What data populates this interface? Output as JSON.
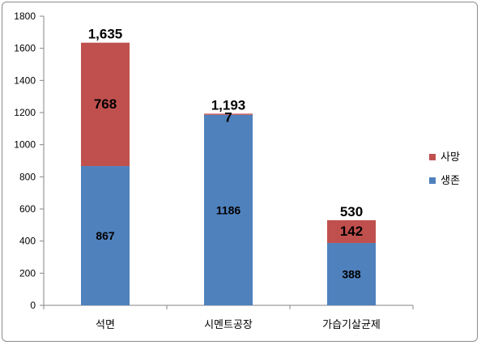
{
  "chart_data": {
    "type": "bar",
    "stacked": true,
    "categories": [
      "석면",
      "시멘트공장",
      "가습기살균제"
    ],
    "series": [
      {
        "name": "생존",
        "color": "#4f81bd",
        "values": [
          867,
          1186,
          388
        ],
        "labels": [
          "867",
          "1186",
          "388"
        ]
      },
      {
        "name": "사망",
        "color": "#c0504d",
        "values": [
          768,
          7,
          142
        ],
        "labels": [
          "768",
          "7",
          "142"
        ]
      }
    ],
    "totals": [
      "1,635",
      "1,193",
      "530"
    ],
    "ylim": [
      0,
      1800
    ],
    "yticks": [
      "0",
      "200",
      "400",
      "600",
      "800",
      "1000",
      "1200",
      "1400",
      "1600",
      "1800"
    ],
    "legend": {
      "position": "right",
      "order": [
        "사망",
        "생존"
      ]
    },
    "grid": false
  }
}
